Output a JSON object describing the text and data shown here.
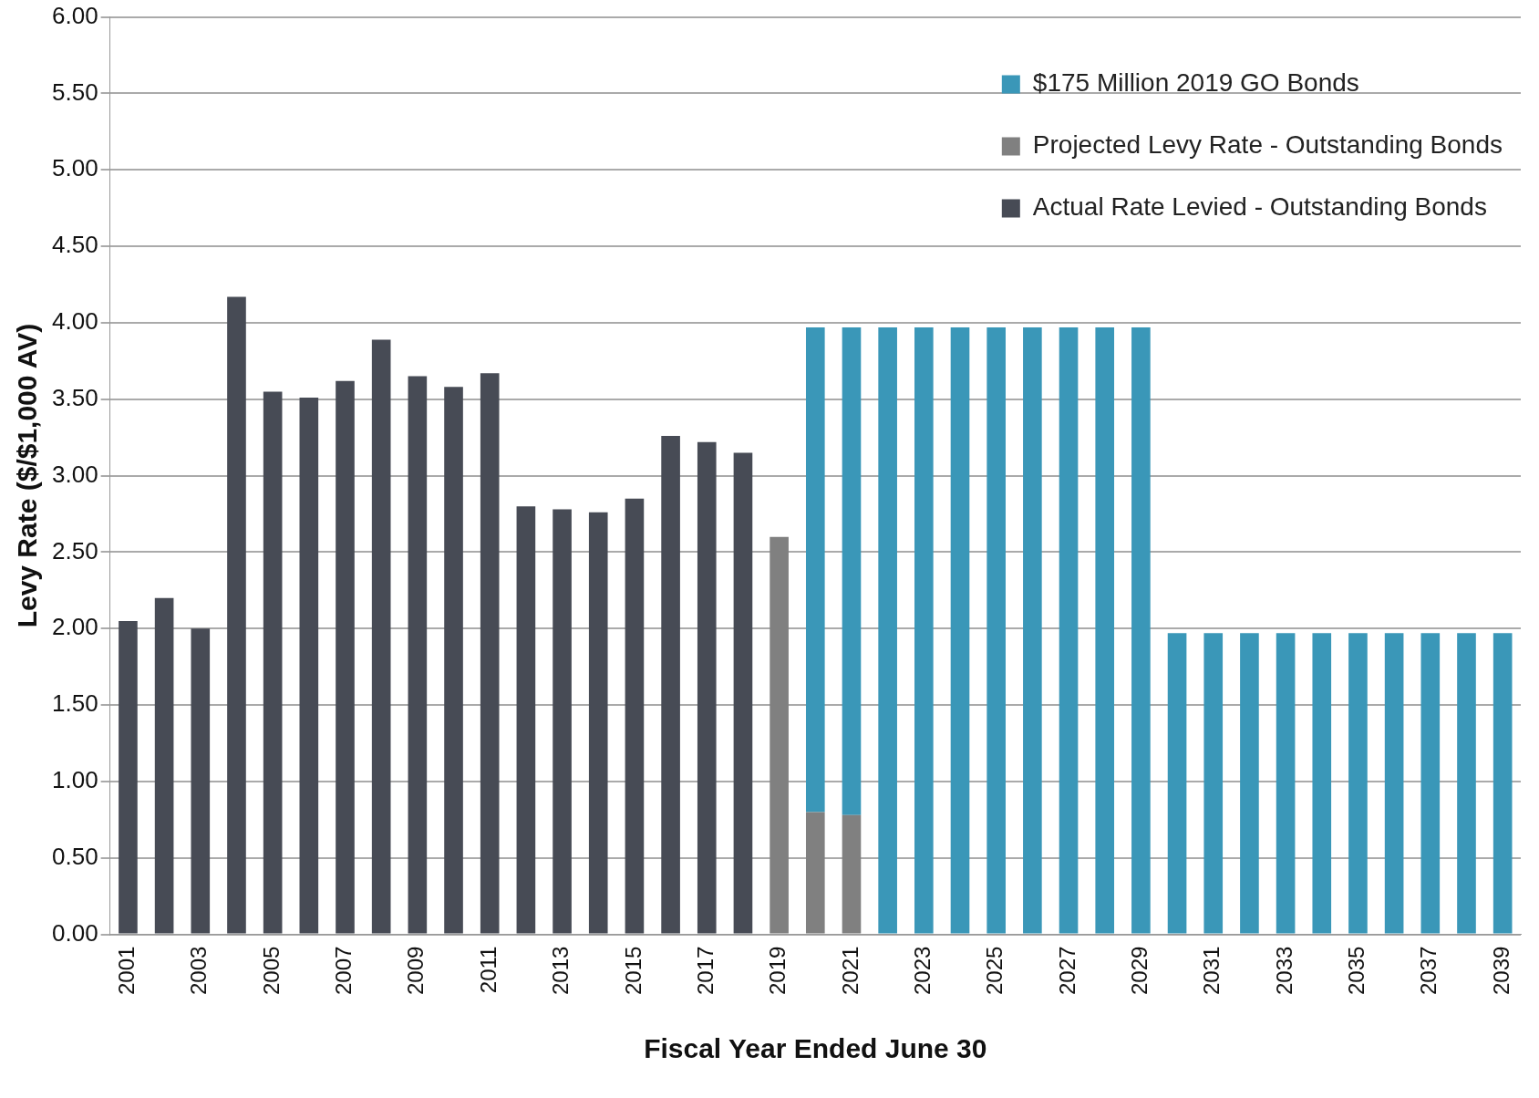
{
  "chart_data": {
    "type": "bar",
    "xlabel": "Fiscal Year Ended June 30",
    "ylabel": "Levy Rate ($/$1,000 AV)",
    "categories": [
      "2001",
      null,
      "2003",
      null,
      "2005",
      null,
      "2007",
      null,
      "2009",
      null,
      "2011",
      null,
      "2013",
      null,
      "2015",
      null,
      "2017",
      null,
      "2019",
      null,
      "2021",
      null,
      "2023",
      null,
      "2025",
      null,
      "2027",
      null,
      "2029",
      null,
      "2031",
      null,
      "2033",
      null,
      "2035",
      null,
      "2037",
      null,
      "2039"
    ],
    "stacked": true,
    "series": [
      {
        "name": "Actual Rate Levied - Outstanding Bonds",
        "color": "#474b55",
        "values": [
          2.05,
          2.2,
          2.0,
          4.17,
          3.55,
          3.51,
          3.62,
          3.89,
          3.65,
          3.58,
          3.67,
          2.8,
          2.78,
          2.76,
          2.85,
          3.26,
          3.22,
          3.15,
          null,
          null,
          null,
          null,
          null,
          null,
          null,
          null,
          null,
          null,
          null,
          null,
          null,
          null,
          null,
          null,
          null,
          null,
          null,
          null,
          null
        ]
      },
      {
        "name": "Projected Levy Rate - Outstanding Bonds",
        "color": "#808080",
        "values": [
          null,
          null,
          null,
          null,
          null,
          null,
          null,
          null,
          null,
          null,
          null,
          null,
          null,
          null,
          null,
          null,
          null,
          null,
          2.6,
          0.8,
          0.78,
          null,
          null,
          null,
          null,
          null,
          null,
          null,
          null,
          null,
          null,
          null,
          null,
          null,
          null,
          null,
          null,
          null,
          null
        ]
      },
      {
        "name": "$175 Million 2019 GO Bonds",
        "color": "#3a97b8",
        "values": [
          null,
          null,
          null,
          null,
          null,
          null,
          null,
          null,
          null,
          null,
          null,
          null,
          null,
          null,
          null,
          null,
          null,
          null,
          null,
          3.17,
          3.19,
          3.97,
          3.97,
          3.97,
          3.97,
          3.97,
          3.97,
          3.97,
          3.97,
          1.97,
          1.97,
          1.97,
          1.97,
          1.97,
          1.97,
          1.97,
          1.97,
          1.97,
          1.97
        ]
      }
    ],
    "ylim": [
      0,
      6
    ],
    "yticks": [
      {
        "value": 0,
        "label": "0.00"
      },
      {
        "value": 0.5,
        "label": "0.50"
      },
      {
        "value": 1,
        "label": "1.00"
      },
      {
        "value": 1.5,
        "label": "1.50"
      },
      {
        "value": 2,
        "label": "2.00"
      },
      {
        "value": 2.5,
        "label": "2.50"
      },
      {
        "value": 3,
        "label": "3.00"
      },
      {
        "value": 3.5,
        "label": "3.50"
      },
      {
        "value": 4,
        "label": "4.00"
      },
      {
        "value": 4.5,
        "label": "4.50"
      },
      {
        "value": 5,
        "label": "5.00"
      },
      {
        "value": 5.5,
        "label": "5.50"
      },
      {
        "value": 6,
        "label": "6.00"
      }
    ],
    "grid": "y",
    "legend": "top right"
  }
}
